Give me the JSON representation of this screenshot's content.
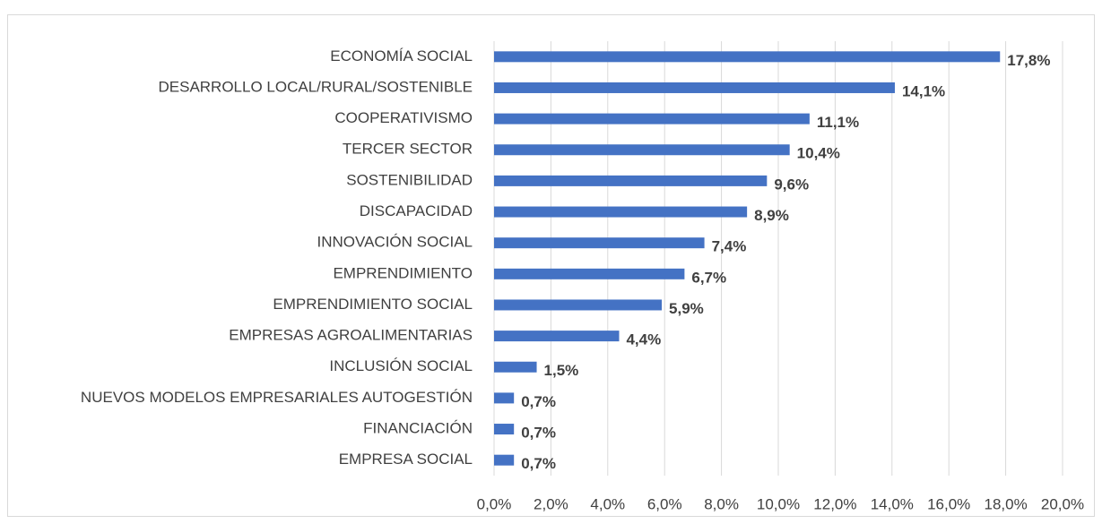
{
  "chart_data": {
    "type": "bar",
    "orientation": "horizontal",
    "color": "#4472c4",
    "grid": true,
    "categories": [
      "ECONOMÍA SOCIAL",
      "DESARROLLO LOCAL/RURAL/SOSTENIBLE",
      "COOPERATIVISMO",
      "TERCER SECTOR",
      "SOSTENIBILIDAD ",
      "DISCAPACIDAD",
      "INNOVACIÓN SOCIAL",
      "EMPRENDIMIENTO",
      "EMPRENDIMIENTO SOCIAL",
      "EMPRESAS AGROALIMENTARIAS",
      "INCLUSIÓN SOCIAL",
      "NUEVOS MODELOS EMPRESARIALES AUTOGESTIÓN",
      "FINANCIACIÓN",
      "EMPRESA SOCIAL"
    ],
    "values": [
      17.8,
      14.1,
      11.1,
      10.4,
      9.6,
      8.9,
      7.4,
      6.7,
      5.9,
      4.4,
      1.5,
      0.7,
      0.7,
      0.7
    ],
    "value_labels": [
      "17,8%",
      "14,1%",
      "11,1%",
      "10,4%",
      "9,6%",
      "8,9%",
      "7,4%",
      "6,7%",
      "5,9%",
      "4,4%",
      "1,5%",
      "0,7%",
      "0,7%",
      "0,7%"
    ],
    "xlim": [
      0,
      20
    ],
    "xticks": [
      {
        "value": 0,
        "label": "0,0%"
      },
      {
        "value": 2,
        "label": "2,0%"
      },
      {
        "value": 4,
        "label": "4,0%"
      },
      {
        "value": 6,
        "label": "6,0%"
      },
      {
        "value": 8,
        "label": "8,0%"
      },
      {
        "value": 10,
        "label": "10,0%"
      },
      {
        "value": 12,
        "label": "12,0%"
      },
      {
        "value": 14,
        "label": "14,0%"
      },
      {
        "value": 16,
        "label": "16,0%"
      },
      {
        "value": 18,
        "label": "18,0%"
      },
      {
        "value": 20,
        "label": "20,0%"
      }
    ]
  }
}
